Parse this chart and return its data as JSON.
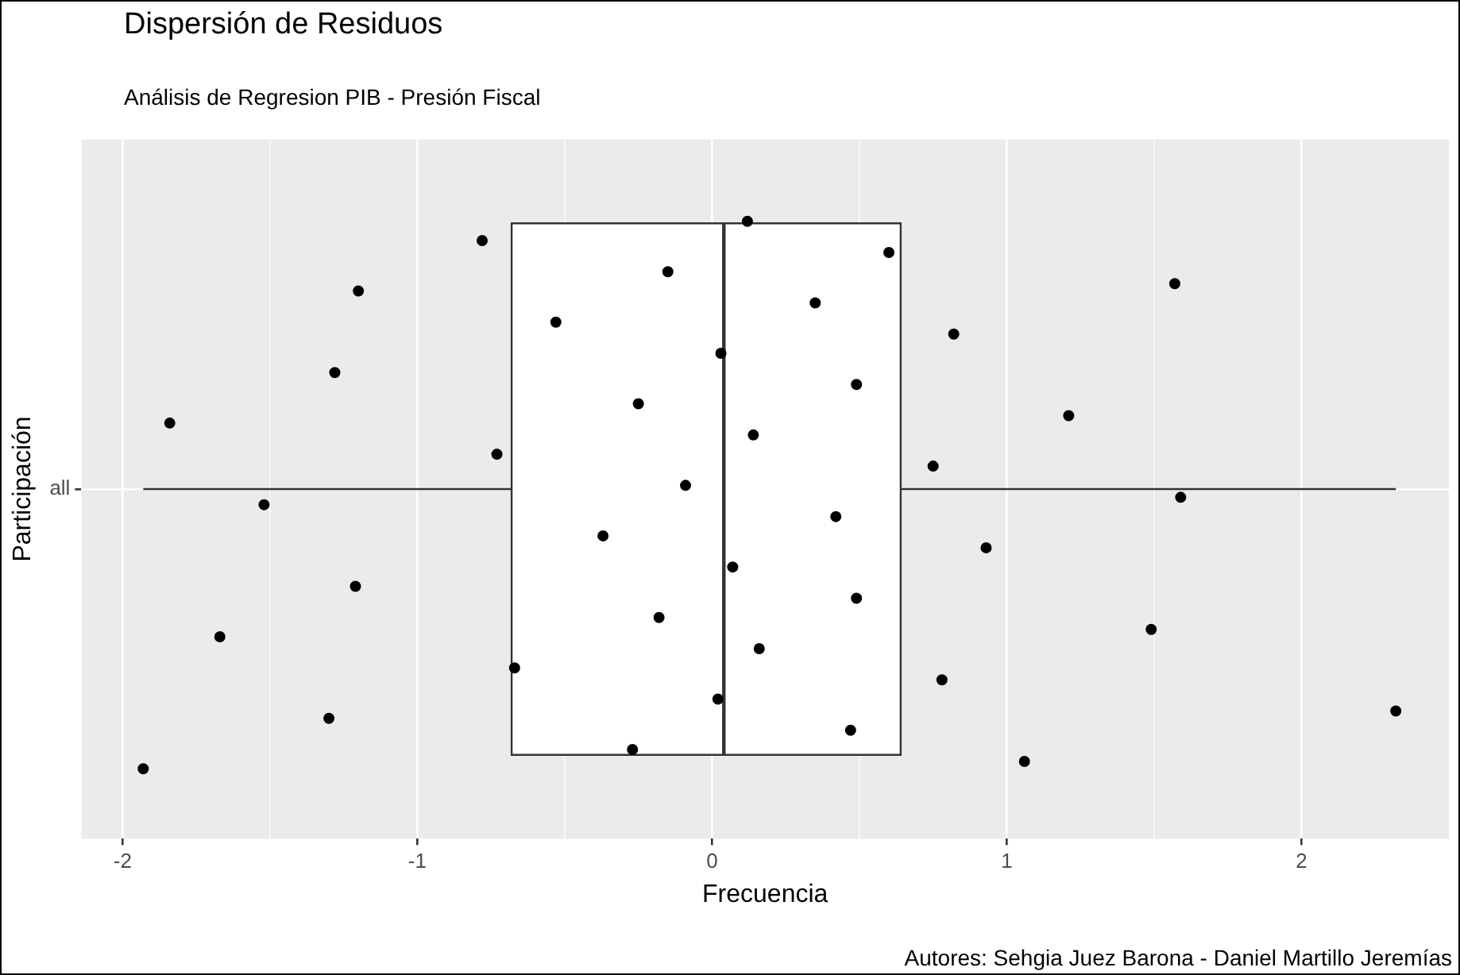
{
  "chart_data": {
    "type": "box",
    "orientation": "horizontal",
    "title": "Dispersión de Residuos",
    "subtitle": "Análisis de Regresion PIB - Presión Fiscal",
    "xlabel": "Frecuencia",
    "ylabel": "Participación",
    "annotations": [
      "Autores: Sehgia Juez Barona - Daniel Martillo Jeremías"
    ],
    "categories": [
      "all"
    ],
    "boxes": [
      {
        "low": -1.93,
        "q1": -0.68,
        "median": 0.04,
        "q3": 0.64,
        "high": 2.32
      }
    ],
    "color": "#ffffff",
    "xlim": [
      -2.14,
      2.5
    ],
    "xticks": [
      -2,
      -1,
      0,
      1,
      2
    ],
    "grid": true,
    "legend": false,
    "series": [
      {
        "type": "scatter",
        "color": "#000000",
        "marker": "circle",
        "x": [
          "all",
          "all",
          "all",
          "all",
          "all",
          "all",
          "all",
          "all",
          "all",
          "all",
          "all",
          "all",
          "all",
          "all",
          "all",
          "all",
          "all",
          "all",
          "all",
          "all",
          "all",
          "all",
          "all",
          "all",
          "all",
          "all",
          "all",
          "all",
          "all",
          "all",
          "all",
          "all",
          "all",
          "all",
          "all",
          "all",
          "all",
          "all",
          "all",
          "all"
        ],
        "values": [
          -1.93,
          -1.84,
          -1.67,
          -1.2,
          -1.52,
          -1.3,
          -1.28,
          -1.21,
          -0.78,
          -0.73,
          -0.67,
          -0.53,
          -0.37,
          -0.27,
          -0.25,
          -0.18,
          -0.15,
          -0.09,
          0.02,
          0.03,
          0.07,
          0.12,
          0.14,
          0.16,
          0.35,
          0.42,
          0.47,
          0.49,
          0.49,
          0.6,
          0.75,
          0.78,
          0.82,
          0.93,
          1.06,
          1.21,
          1.49,
          1.57,
          1.59,
          2.32
        ]
      }
    ]
  }
}
